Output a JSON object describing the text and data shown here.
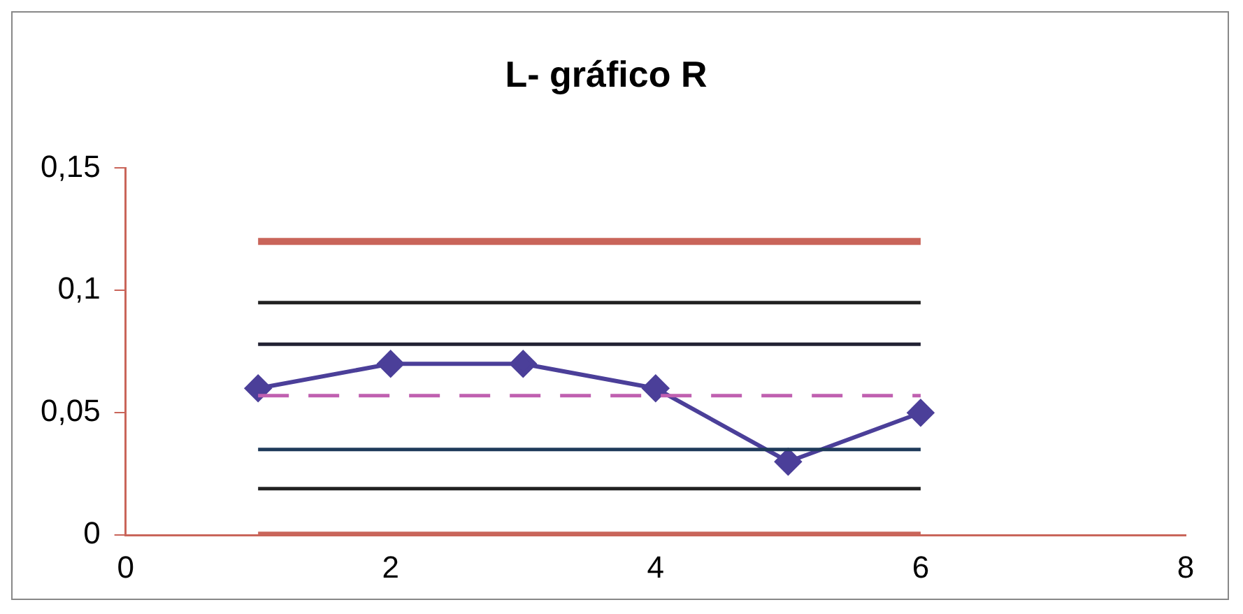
{
  "chart_data": {
    "type": "line",
    "title": "L- gráfico R",
    "xlim": [
      0,
      8
    ],
    "xticks": [
      0,
      2,
      4,
      6,
      8
    ],
    "ylim": [
      0,
      0.15
    ],
    "yticks": [
      {
        "value": 0,
        "label": "0"
      },
      {
        "value": 0.05,
        "label": "0,05"
      },
      {
        "value": 0.1,
        "label": "0,1"
      },
      {
        "value": 0.15,
        "label": "0,15"
      }
    ],
    "grid": false,
    "legend": false,
    "series": [
      {
        "color": "#c9655a",
        "x": [
          1,
          6
        ],
        "values": [
          0.12,
          0.12
        ],
        "marker": "none",
        "line_style": "solid"
      },
      {
        "color": "#222222",
        "x": [
          1,
          6
        ],
        "values": [
          0.095,
          0.095
        ],
        "marker": "none",
        "line_style": "solid"
      },
      {
        "color": "#222233",
        "x": [
          1,
          6
        ],
        "values": [
          0.078,
          0.078
        ],
        "marker": "none",
        "line_style": "solid"
      },
      {
        "color": "#c060b0",
        "x": [
          1,
          6
        ],
        "values": [
          0.057,
          0.057
        ],
        "marker": "none",
        "line_style": "dashed"
      },
      {
        "color": "#1e3a5a",
        "x": [
          1,
          6
        ],
        "values": [
          0.035,
          0.035
        ],
        "marker": "none",
        "line_style": "solid"
      },
      {
        "color": "#222222",
        "x": [
          1,
          6
        ],
        "values": [
          0.019,
          0.019
        ],
        "marker": "none",
        "line_style": "solid"
      },
      {
        "color": "#c9655a",
        "x": [
          1,
          6
        ],
        "values": [
          0,
          0
        ],
        "marker": "none",
        "line_style": "solid"
      },
      {
        "color": "#4b3f99",
        "x": [
          1,
          2,
          3,
          4,
          5,
          6
        ],
        "values": [
          0.06,
          0.07,
          0.07,
          0.06,
          0.03,
          0.05
        ],
        "marker": "diamond",
        "line_style": "solid"
      }
    ]
  }
}
